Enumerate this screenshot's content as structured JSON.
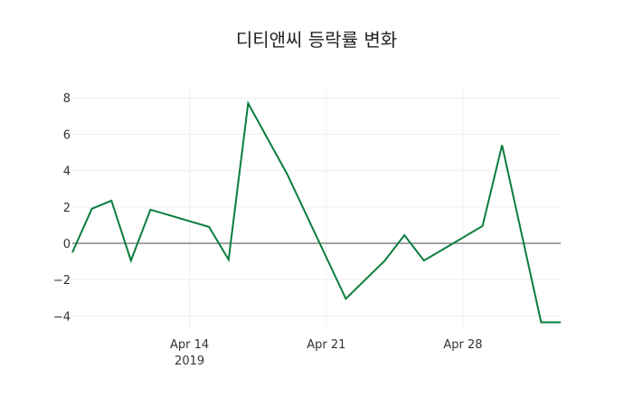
{
  "chart_data": {
    "type": "line",
    "title": "디티앤씨 등락률 변화",
    "xlabel": "",
    "ylabel": "",
    "x": [
      "2019-04-08",
      "2019-04-09",
      "2019-04-10",
      "2019-04-11",
      "2019-04-12",
      "2019-04-15",
      "2019-04-16",
      "2019-04-17",
      "2019-04-19",
      "2019-04-22",
      "2019-04-24",
      "2019-04-25",
      "2019-04-26",
      "2019-04-29",
      "2019-04-30",
      "2019-05-02",
      "2019-05-03"
    ],
    "series": [
      {
        "name": "등락률",
        "color": "#0a7d3e",
        "values": [
          -0.5,
          1.9,
          2.35,
          -0.95,
          1.85,
          0.9,
          -0.9,
          7.7,
          3.8,
          -3.05,
          -0.95,
          0.45,
          -0.95,
          0.95,
          5.4,
          -4.35,
          -4.35
        ]
      }
    ],
    "xticks": [
      {
        "label": "Apr 14",
        "sublabel": "2019"
      },
      {
        "label": "Apr 21",
        "sublabel": ""
      },
      {
        "label": "Apr 28",
        "sublabel": ""
      }
    ],
    "yticks": [
      "8",
      "6",
      "4",
      "2",
      "0",
      "−2",
      "−4"
    ],
    "ylim": [
      -4.8,
      8.4
    ],
    "grid": true,
    "legend": "none"
  }
}
